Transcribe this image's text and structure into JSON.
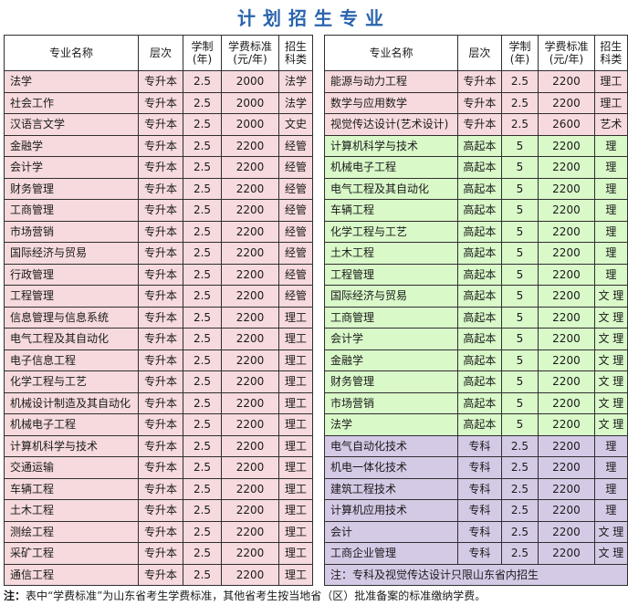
{
  "title": "计划招生专业",
  "headers": {
    "name": "专业名称",
    "level": "层次",
    "years_l1": "学制",
    "years_l2": "(年)",
    "fee_l1": "学费标准",
    "fee_l2": "(元/年)",
    "cat_l1": "招生",
    "cat_l2": "科类"
  },
  "left_rows": [
    {
      "name": "法学",
      "level": "专升本",
      "years": "2.5",
      "fee": "2000",
      "cat": "法学"
    },
    {
      "name": "社会工作",
      "level": "专升本",
      "years": "2.5",
      "fee": "2000",
      "cat": "法学"
    },
    {
      "name": "汉语言文学",
      "level": "专升本",
      "years": "2.5",
      "fee": "2000",
      "cat": "文史"
    },
    {
      "name": "金融学",
      "level": "专升本",
      "years": "2.5",
      "fee": "2200",
      "cat": "经管"
    },
    {
      "name": "会计学",
      "level": "专升本",
      "years": "2.5",
      "fee": "2200",
      "cat": "经管"
    },
    {
      "name": "财务管理",
      "level": "专升本",
      "years": "2.5",
      "fee": "2200",
      "cat": "经管"
    },
    {
      "name": "工商管理",
      "level": "专升本",
      "years": "2.5",
      "fee": "2200",
      "cat": "经管"
    },
    {
      "name": "市场营销",
      "level": "专升本",
      "years": "2.5",
      "fee": "2200",
      "cat": "经管"
    },
    {
      "name": "国际经济与贸易",
      "level": "专升本",
      "years": "2.5",
      "fee": "2200",
      "cat": "经管"
    },
    {
      "name": "行政管理",
      "level": "专升本",
      "years": "2.5",
      "fee": "2200",
      "cat": "经管"
    },
    {
      "name": "工程管理",
      "level": "专升本",
      "years": "2.5",
      "fee": "2200",
      "cat": "经管"
    },
    {
      "name": "信息管理与信息系统",
      "level": "专升本",
      "years": "2.5",
      "fee": "2200",
      "cat": "理工"
    },
    {
      "name": "电气工程及其自动化",
      "level": "专升本",
      "years": "2.5",
      "fee": "2200",
      "cat": "理工"
    },
    {
      "name": "电子信息工程",
      "level": "专升本",
      "years": "2.5",
      "fee": "2200",
      "cat": "理工"
    },
    {
      "name": "化学工程与工艺",
      "level": "专升本",
      "years": "2.5",
      "fee": "2200",
      "cat": "理工"
    },
    {
      "name": "机械设计制造及其自动化",
      "level": "专升本",
      "years": "2.5",
      "fee": "2200",
      "cat": "理工"
    },
    {
      "name": "机械电子工程",
      "level": "专升本",
      "years": "2.5",
      "fee": "2200",
      "cat": "理工"
    },
    {
      "name": "计算机科学与技术",
      "level": "专升本",
      "years": "2.5",
      "fee": "2200",
      "cat": "理工"
    },
    {
      "name": "交通运输",
      "level": "专升本",
      "years": "2.5",
      "fee": "2200",
      "cat": "理工"
    },
    {
      "name": "车辆工程",
      "level": "专升本",
      "years": "2.5",
      "fee": "2200",
      "cat": "理工"
    },
    {
      "name": "土木工程",
      "level": "专升本",
      "years": "2.5",
      "fee": "2200",
      "cat": "理工"
    },
    {
      "name": "测绘工程",
      "level": "专升本",
      "years": "2.5",
      "fee": "2200",
      "cat": "理工"
    },
    {
      "name": "采矿工程",
      "level": "专升本",
      "years": "2.5",
      "fee": "2200",
      "cat": "理工"
    },
    {
      "name": "通信工程",
      "level": "专升本",
      "years": "2.5",
      "fee": "2200",
      "cat": "理工"
    }
  ],
  "right_rows": [
    {
      "group": "pink",
      "name": "能源与动力工程",
      "level": "专升本",
      "years": "2.5",
      "fee": "2200",
      "cat": "理工"
    },
    {
      "group": "pink",
      "name": "数学与应用数学",
      "level": "专升本",
      "years": "2.5",
      "fee": "2200",
      "cat": "理工"
    },
    {
      "group": "pink",
      "name": "视觉传达设计(艺术设计)",
      "level": "专升本",
      "years": "2.5",
      "fee": "2600",
      "cat": "艺术"
    },
    {
      "group": "green",
      "name": "计算机科学与技术",
      "level": "高起本",
      "years": "5",
      "fee": "2200",
      "cat": "理"
    },
    {
      "group": "green",
      "name": "机械电子工程",
      "level": "高起本",
      "years": "5",
      "fee": "2200",
      "cat": "理"
    },
    {
      "group": "green",
      "name": "电气工程及其自动化",
      "level": "高起本",
      "years": "5",
      "fee": "2200",
      "cat": "理"
    },
    {
      "group": "green",
      "name": "车辆工程",
      "level": "高起本",
      "years": "5",
      "fee": "2200",
      "cat": "理"
    },
    {
      "group": "green",
      "name": "化学工程与工艺",
      "level": "高起本",
      "years": "5",
      "fee": "2200",
      "cat": "理"
    },
    {
      "group": "green",
      "name": "土木工程",
      "level": "高起本",
      "years": "5",
      "fee": "2200",
      "cat": "理"
    },
    {
      "group": "green",
      "name": "工程管理",
      "level": "高起本",
      "years": "5",
      "fee": "2200",
      "cat": "理"
    },
    {
      "group": "green",
      "name": "国际经济与贸易",
      "level": "高起本",
      "years": "5",
      "fee": "2200",
      "cat": "文 理"
    },
    {
      "group": "green",
      "name": "工商管理",
      "level": "高起本",
      "years": "5",
      "fee": "2200",
      "cat": "文 理"
    },
    {
      "group": "green",
      "name": "会计学",
      "level": "高起本",
      "years": "5",
      "fee": "2200",
      "cat": "文 理"
    },
    {
      "group": "green",
      "name": "金融学",
      "level": "高起本",
      "years": "5",
      "fee": "2200",
      "cat": "文 理"
    },
    {
      "group": "green",
      "name": "财务管理",
      "level": "高起本",
      "years": "5",
      "fee": "2200",
      "cat": "文 理"
    },
    {
      "group": "green",
      "name": "市场营销",
      "level": "高起本",
      "years": "5",
      "fee": "2200",
      "cat": "文 理"
    },
    {
      "group": "green",
      "name": "法学",
      "level": "高起本",
      "years": "5",
      "fee": "2200",
      "cat": "文 理"
    },
    {
      "group": "purple",
      "name": "电气自动化技术",
      "level": "专科",
      "years": "2.5",
      "fee": "2200",
      "cat": "理"
    },
    {
      "group": "purple",
      "name": "机电一体化技术",
      "level": "专科",
      "years": "2.5",
      "fee": "2200",
      "cat": "理"
    },
    {
      "group": "purple",
      "name": "建筑工程技术",
      "level": "专科",
      "years": "2.5",
      "fee": "2200",
      "cat": "理"
    },
    {
      "group": "purple",
      "name": "计算机应用技术",
      "level": "专科",
      "years": "2.5",
      "fee": "2200",
      "cat": "理"
    },
    {
      "group": "purple",
      "name": "会计",
      "level": "专科",
      "years": "2.5",
      "fee": "2200",
      "cat": "文 理"
    },
    {
      "group": "purple",
      "name": "工商企业管理",
      "level": "专科",
      "years": "2.5",
      "fee": "2200",
      "cat": "文 理"
    }
  ],
  "right_note": "注：专科及视觉传达设计只限山东省内招生",
  "footnote": {
    "prefix": "注：",
    "text": "表中“学费标准”为山东省考生学费标准，其他省考生按当地省（区）批准备案的标准缴纳学费。"
  }
}
